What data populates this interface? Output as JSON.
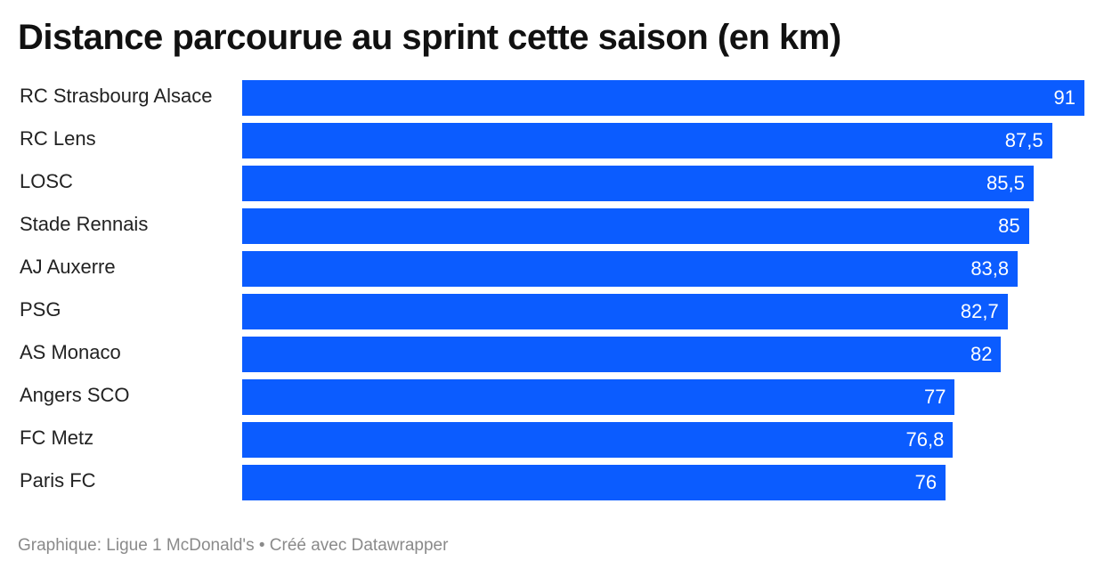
{
  "title": "Distance parcourue au sprint cette saison (en km)",
  "footer": "Graphique: Ligue 1 McDonald's • Créé avec Datawrapper",
  "bar_color": "#0b5cff",
  "chart_data": {
    "type": "bar",
    "orientation": "horizontal",
    "title": "Distance parcourue au sprint cette saison (en km)",
    "categories": [
      "RC Strasbourg Alsace",
      "RC Lens",
      "LOSC",
      "Stade Rennais",
      "AJ Auxerre",
      "PSG",
      "AS Monaco",
      "Angers SCO",
      "FC Metz",
      "Paris FC"
    ],
    "values": [
      91,
      87.5,
      85.5,
      85,
      83.8,
      82.7,
      82,
      77,
      76.8,
      76
    ],
    "value_labels": [
      "91",
      "87,5",
      "85,5",
      "85",
      "83,8",
      "82,7",
      "82",
      "77",
      "76,8",
      "76"
    ],
    "xlim": [
      0,
      91
    ],
    "grid": false,
    "legend": "none"
  }
}
